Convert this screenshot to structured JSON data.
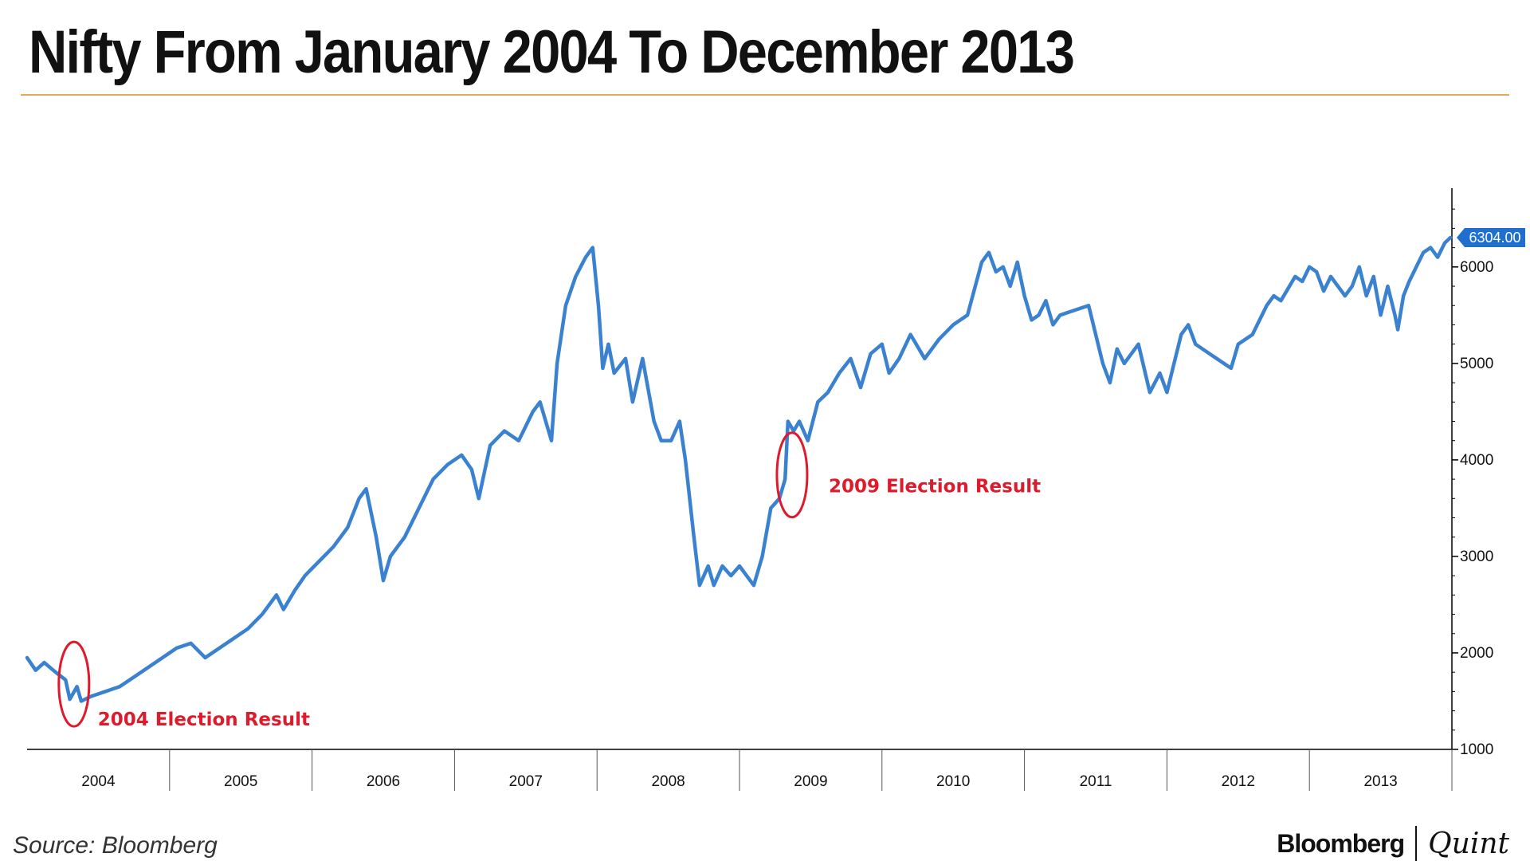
{
  "title": "Nifty From January 2004 To December 2013",
  "source": "Source: Bloomberg",
  "brand": {
    "primary": "Bloomberg",
    "secondary": "Quint"
  },
  "colors": {
    "line": "#3a82d0",
    "annotation": "#dd1b2c",
    "axis": "#000000",
    "title_rule": "#e8a85a",
    "last_value_bg": "#1f6fcf"
  },
  "chart_data": {
    "type": "line",
    "title": "Nifty From January 2004 To December 2013",
    "xlabel": "",
    "ylabel": "",
    "x_axis_side": "bottom",
    "y_axis_side": "right",
    "xlim": [
      2004.0,
      2014.0
    ],
    "ylim": [
      1000,
      6800
    ],
    "yticks": [
      1000,
      2000,
      3000,
      4000,
      5000,
      6000
    ],
    "ytick_labels": [
      "1000",
      "2000",
      "3000",
      "4000",
      "5000",
      "6000"
    ],
    "xtick_labels": [
      "2004",
      "2005",
      "2006",
      "2007",
      "2008",
      "2009",
      "2010",
      "2011",
      "2012",
      "2013"
    ],
    "last_value_label": "6304.00",
    "grid": false,
    "series": [
      {
        "name": "Nifty",
        "x": [
          2004.0,
          2004.06,
          2004.12,
          2004.2,
          2004.27,
          2004.3,
          2004.35,
          2004.38,
          2004.45,
          2004.55,
          2004.65,
          2004.75,
          2004.85,
          2004.95,
          2005.05,
          2005.15,
          2005.25,
          2005.35,
          2005.45,
          2005.55,
          2005.65,
          2005.75,
          2005.8,
          2005.88,
          2005.95,
          2006.05,
          2006.15,
          2006.25,
          2006.33,
          2006.38,
          2006.45,
          2006.5,
          2006.55,
          2006.65,
          2006.75,
          2006.85,
          2006.95,
          2007.05,
          2007.12,
          2007.17,
          2007.25,
          2007.35,
          2007.45,
          2007.55,
          2007.6,
          2007.68,
          2007.72,
          2007.78,
          2007.85,
          2007.92,
          2007.97,
          2008.01,
          2008.04,
          2008.08,
          2008.12,
          2008.2,
          2008.25,
          2008.32,
          2008.4,
          2008.45,
          2008.52,
          2008.58,
          2008.62,
          2008.68,
          2008.72,
          2008.78,
          2008.82,
          2008.88,
          2008.94,
          2009.0,
          2009.05,
          2009.1,
          2009.16,
          2009.22,
          2009.28,
          2009.32,
          2009.34,
          2009.38,
          2009.42,
          2009.48,
          2009.55,
          2009.62,
          2009.7,
          2009.78,
          2009.85,
          2009.92,
          2010.0,
          2010.05,
          2010.12,
          2010.2,
          2010.3,
          2010.4,
          2010.5,
          2010.6,
          2010.7,
          2010.75,
          2010.8,
          2010.85,
          2010.9,
          2010.95,
          2011.0,
          2011.05,
          2011.1,
          2011.15,
          2011.2,
          2011.25,
          2011.35,
          2011.45,
          2011.55,
          2011.6,
          2011.65,
          2011.7,
          2011.8,
          2011.88,
          2011.95,
          2012.0,
          2012.05,
          2012.1,
          2012.15,
          2012.2,
          2012.3,
          2012.4,
          2012.45,
          2012.5,
          2012.6,
          2012.7,
          2012.75,
          2012.8,
          2012.9,
          2012.95,
          2013.0,
          2013.05,
          2013.1,
          2013.15,
          2013.25,
          2013.3,
          2013.35,
          2013.4,
          2013.45,
          2013.5,
          2013.55,
          2013.6,
          2013.62,
          2013.66,
          2013.7,
          2013.75,
          2013.8,
          2013.85,
          2013.9,
          2013.95,
          2013.99
        ],
        "y": [
          1950,
          1820,
          1900,
          1800,
          1720,
          1520,
          1650,
          1500,
          1550,
          1600,
          1650,
          1750,
          1850,
          1950,
          2050,
          2100,
          1950,
          2050,
          2150,
          2250,
          2400,
          2600,
          2450,
          2650,
          2800,
          2950,
          3100,
          3300,
          3600,
          3700,
          3200,
          2750,
          3000,
          3200,
          3500,
          3800,
          3950,
          4050,
          3900,
          3600,
          4150,
          4300,
          4200,
          4500,
          4600,
          4200,
          5000,
          5600,
          5900,
          6100,
          6200,
          5600,
          4950,
          5200,
          4900,
          5050,
          4600,
          5050,
          4400,
          4200,
          4200,
          4400,
          4000,
          3200,
          2700,
          2900,
          2700,
          2900,
          2800,
          2900,
          2800,
          2700,
          3000,
          3500,
          3600,
          3800,
          4400,
          4300,
          4400,
          4200,
          4600,
          4700,
          4900,
          5050,
          4750,
          5100,
          5200,
          4900,
          5050,
          5300,
          5050,
          5250,
          5400,
          5500,
          6050,
          6150,
          5950,
          6000,
          5800,
          6050,
          5700,
          5450,
          5500,
          5650,
          5400,
          5500,
          5550,
          5600,
          5000,
          4800,
          5150,
          5000,
          5200,
          4700,
          4900,
          4700,
          5000,
          5300,
          5400,
          5200,
          5100,
          5000,
          4950,
          5200,
          5300,
          5600,
          5700,
          5650,
          5900,
          5850,
          6000,
          5950,
          5750,
          5900,
          5700,
          5800,
          6000,
          5700,
          5900,
          5500,
          5800,
          5500,
          5350,
          5700,
          5850,
          6000,
          6150,
          6200,
          6100,
          6250,
          6304
        ]
      }
    ],
    "annotations": [
      {
        "text": "2004 Election Result",
        "x": 2004.34,
        "y": 1610
      },
      {
        "text": "2009 Election Result",
        "x": 2009.38,
        "y": 3960
      }
    ]
  }
}
